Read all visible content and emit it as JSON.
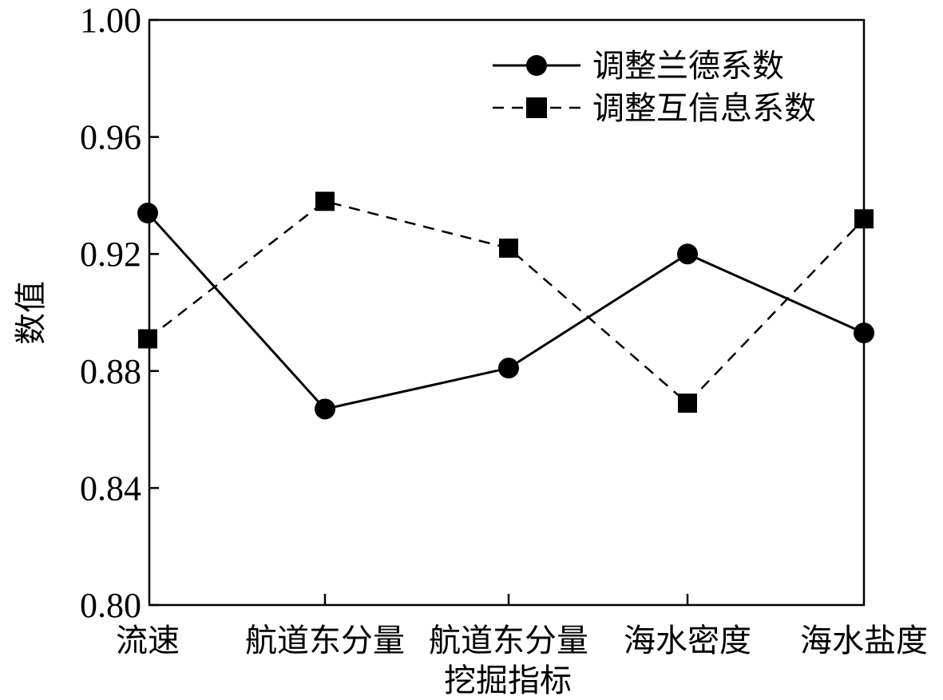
{
  "chart_data": {
    "type": "line",
    "categories": [
      "流速",
      "航道东分量",
      "航道东分量",
      "海水密度",
      "海水盐度"
    ],
    "xlabel": "挖掘指标",
    "ylabel": "数值",
    "ylim": [
      0.8,
      1.0
    ],
    "yticks": [
      "0.80",
      "0.84",
      "0.88",
      "0.92",
      "0.96",
      "1.00"
    ],
    "grid": false,
    "legend_position": "top-right",
    "series": [
      {
        "name": "调整兰德系数",
        "marker": "circle",
        "line_style": "solid",
        "values": [
          0.934,
          0.867,
          0.881,
          0.92,
          0.893
        ]
      },
      {
        "name": "调整互信息系数",
        "marker": "square",
        "line_style": "dashed",
        "values": [
          0.891,
          0.938,
          0.922,
          0.869,
          0.932
        ]
      }
    ]
  }
}
